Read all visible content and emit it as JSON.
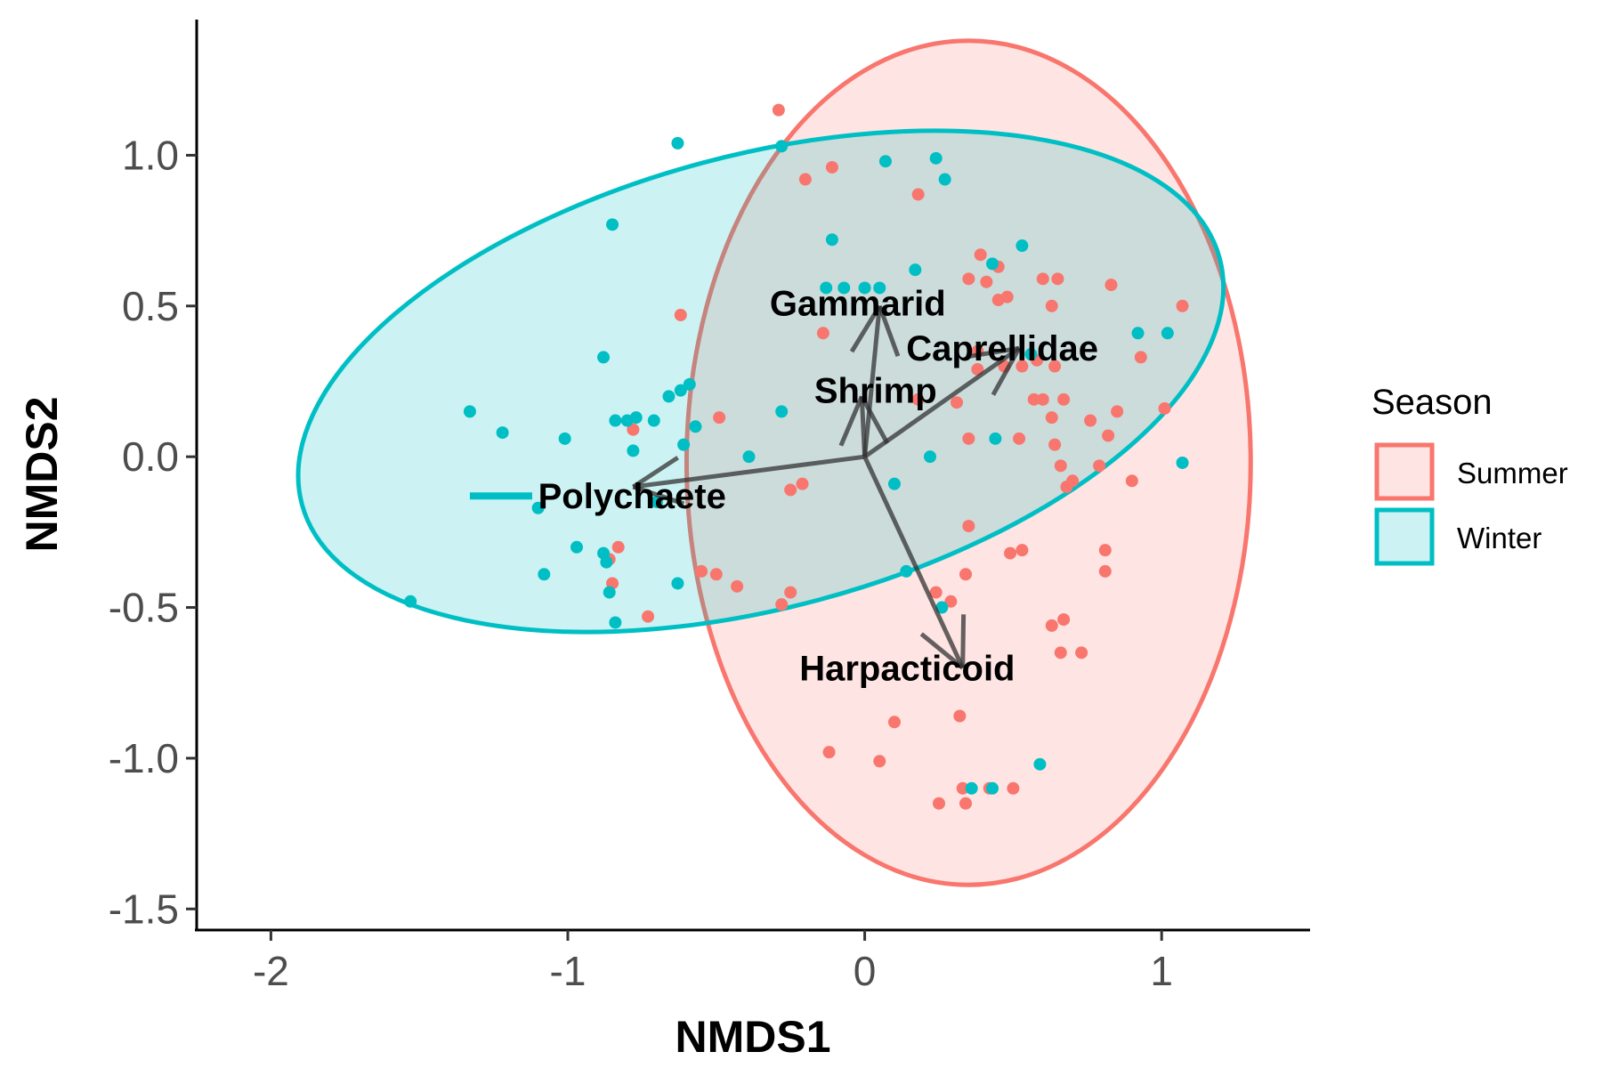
{
  "chart_data": {
    "type": "scatter",
    "xlabel": "NMDS1",
    "ylabel": "NMDS2",
    "xlim": [
      -2.25,
      1.5
    ],
    "ylim": [
      -1.57,
      1.45
    ],
    "x_ticks": [
      -2,
      -1,
      0,
      1
    ],
    "x_tick_labels": [
      "-2",
      "-1",
      "0",
      "1"
    ],
    "y_ticks": [
      -1.5,
      -1.0,
      -0.5,
      0.0,
      0.5,
      1.0
    ],
    "y_tick_labels": [
      "-1.5",
      "-1.0",
      "-0.5",
      "0.0",
      "0.5",
      "1.0"
    ],
    "grid": false,
    "legend": {
      "title": "Season",
      "placement": "right"
    },
    "series": [
      {
        "name": "Summer",
        "color": "#F8766D",
        "ellipse": {
          "cx": 0.35,
          "cy": -0.02,
          "rx": 0.95,
          "ry": 1.4,
          "angle": 0
        },
        "points": [
          [
            -0.29,
            1.15
          ],
          [
            -0.11,
            0.96
          ],
          [
            -0.2,
            0.92
          ],
          [
            0.18,
            0.87
          ],
          [
            0.39,
            0.67
          ],
          [
            0.45,
            0.63
          ],
          [
            0.35,
            0.59
          ],
          [
            0.41,
            0.58
          ],
          [
            0.6,
            0.59
          ],
          [
            0.65,
            0.59
          ],
          [
            0.83,
            0.57
          ],
          [
            0.45,
            0.52
          ],
          [
            0.48,
            0.53
          ],
          [
            0.63,
            0.5
          ],
          [
            -0.14,
            0.41
          ],
          [
            0.38,
            0.35
          ],
          [
            0.38,
            0.29
          ],
          [
            0.47,
            0.3
          ],
          [
            0.53,
            0.3
          ],
          [
            0.58,
            0.32
          ],
          [
            0.64,
            0.3
          ],
          [
            0.93,
            0.33
          ],
          [
            1.07,
            0.5
          ],
          [
            0.18,
            0.19
          ],
          [
            0.31,
            0.18
          ],
          [
            0.57,
            0.19
          ],
          [
            0.6,
            0.19
          ],
          [
            0.67,
            0.19
          ],
          [
            0.63,
            0.13
          ],
          [
            0.85,
            0.15
          ],
          [
            1.01,
            0.16
          ],
          [
            -0.49,
            0.13
          ],
          [
            -0.62,
            0.47
          ],
          [
            -0.78,
            0.09
          ],
          [
            0.35,
            0.06
          ],
          [
            0.52,
            0.06
          ],
          [
            0.64,
            0.04
          ],
          [
            0.76,
            0.12
          ],
          [
            0.82,
            0.07
          ],
          [
            0.66,
            -0.03
          ],
          [
            0.79,
            -0.03
          ],
          [
            0.9,
            -0.08
          ],
          [
            0.7,
            -0.08
          ],
          [
            0.68,
            -0.1
          ],
          [
            -0.21,
            -0.09
          ],
          [
            -0.25,
            -0.11
          ],
          [
            0.35,
            -0.23
          ],
          [
            0.53,
            -0.31
          ],
          [
            0.49,
            -0.32
          ],
          [
            0.81,
            -0.31
          ],
          [
            0.81,
            -0.38
          ],
          [
            0.34,
            -0.39
          ],
          [
            -0.83,
            -0.3
          ],
          [
            -0.86,
            -0.34
          ],
          [
            -0.85,
            -0.42
          ],
          [
            -0.55,
            -0.38
          ],
          [
            -0.5,
            -0.39
          ],
          [
            -0.43,
            -0.43
          ],
          [
            -0.25,
            -0.45
          ],
          [
            -0.28,
            -0.49
          ],
          [
            -0.73,
            -0.53
          ],
          [
            0.24,
            -0.45
          ],
          [
            0.29,
            -0.48
          ],
          [
            0.63,
            -0.56
          ],
          [
            0.67,
            -0.54
          ],
          [
            0.66,
            -0.65
          ],
          [
            0.73,
            -0.65
          ],
          [
            0.32,
            -0.86
          ],
          [
            0.1,
            -0.88
          ],
          [
            -0.12,
            -0.98
          ],
          [
            0.05,
            -1.01
          ],
          [
            0.33,
            -1.1
          ],
          [
            0.42,
            -1.1
          ],
          [
            0.5,
            -1.1
          ],
          [
            0.25,
            -1.15
          ],
          [
            0.34,
            -1.15
          ]
        ]
      },
      {
        "name": "Winter",
        "color": "#00BFC4",
        "ellipse": {
          "cx": -0.35,
          "cy": 0.25,
          "rx": 1.6,
          "ry": 0.75,
          "angle": -15
        },
        "points": [
          [
            -0.63,
            1.04
          ],
          [
            -0.28,
            1.03
          ],
          [
            0.07,
            0.98
          ],
          [
            0.24,
            0.99
          ],
          [
            0.27,
            0.92
          ],
          [
            -0.85,
            0.77
          ],
          [
            -0.11,
            0.72
          ],
          [
            0.53,
            0.7
          ],
          [
            0.43,
            0.64
          ],
          [
            0.17,
            0.62
          ],
          [
            -0.13,
            0.56
          ],
          [
            -0.07,
            0.56
          ],
          [
            0.0,
            0.56
          ],
          [
            0.05,
            0.56
          ],
          [
            0.92,
            0.41
          ],
          [
            1.02,
            0.41
          ],
          [
            0.56,
            0.34
          ],
          [
            -0.59,
            0.24
          ],
          [
            -0.62,
            0.22
          ],
          [
            -0.66,
            0.2
          ],
          [
            -0.57,
            0.1
          ],
          [
            -0.84,
            0.12
          ],
          [
            -0.8,
            0.12
          ],
          [
            -0.77,
            0.13
          ],
          [
            -0.71,
            0.12
          ],
          [
            -1.33,
            0.15
          ],
          [
            -1.22,
            0.08
          ],
          [
            -1.01,
            0.06
          ],
          [
            -0.88,
            0.33
          ],
          [
            -0.78,
            0.02
          ],
          [
            -0.61,
            0.04
          ],
          [
            -0.28,
            0.15
          ],
          [
            -0.39,
            0.0
          ],
          [
            0.22,
            0.0
          ],
          [
            0.44,
            0.06
          ],
          [
            0.1,
            -0.09
          ],
          [
            1.07,
            -0.02
          ],
          [
            -0.7,
            -0.15
          ],
          [
            -1.1,
            -0.17
          ],
          [
            -0.97,
            -0.3
          ],
          [
            -0.88,
            -0.32
          ],
          [
            -0.87,
            -0.35
          ],
          [
            -1.08,
            -0.39
          ],
          [
            -0.86,
            -0.45
          ],
          [
            -0.63,
            -0.42
          ],
          [
            -1.53,
            -0.48
          ],
          [
            -0.84,
            -0.55
          ],
          [
            0.14,
            -0.38
          ],
          [
            0.26,
            -0.5
          ],
          [
            0.59,
            -1.02
          ],
          [
            0.36,
            -1.1
          ],
          [
            0.43,
            -1.1
          ]
        ]
      }
    ],
    "vectors": [
      {
        "label": "Gammarid",
        "x": 0.05,
        "y": 0.5,
        "label_x": -0.32,
        "label_y": 0.51
      },
      {
        "label": "Caprellidae",
        "x": 0.52,
        "y": 0.36,
        "label_x": 0.14,
        "label_y": 0.36
      },
      {
        "label": "Shrimp",
        "x": -0.01,
        "y": 0.2,
        "label_x": -0.17,
        "label_y": 0.22
      },
      {
        "label": "Polychaete",
        "x": -0.78,
        "y": -0.1,
        "label_x": -1.1,
        "label_y": -0.13
      },
      {
        "label": "Harpacticoid",
        "x": 0.33,
        "y": -0.7,
        "label_x": -0.22,
        "label_y": -0.7
      }
    ],
    "vector_color": "#333333"
  }
}
